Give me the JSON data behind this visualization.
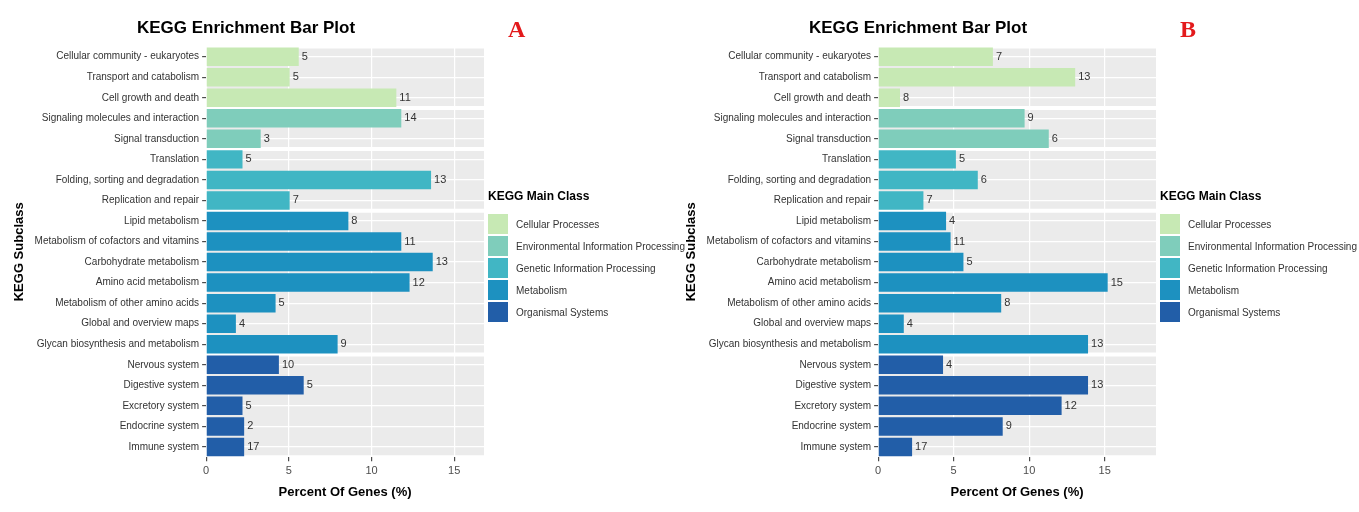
{
  "chart_data": [
    {
      "type": "bar",
      "orientation": "horizontal",
      "title": "KEGG Enrichment Bar Plot",
      "xlabel": "Percent Of Genes (%)",
      "ylabel": "KEGG Subclass",
      "legend_title": "KEGG Main Class",
      "legend": "right",
      "grid": true,
      "categories": [
        "Cellular community - eukaryotes",
        "Transport and catabolism",
        "Cell growth and death",
        "Signaling molecules and interaction",
        "Signal transduction",
        "Translation",
        "Folding, sorting and degradation",
        "Replication and repair",
        "Lipid metabolism",
        "Metabolism of cofactors and vitamins",
        "Carbohydrate metabolism",
        "Amino acid metabolism",
        "Metabolism of other amino acids",
        "Global and overview maps",
        "Glycan biosynthesis and metabolism",
        "Nervous system",
        "Digestive system",
        "Excretory system",
        "Endocrine system",
        "Immune system"
      ],
      "xlim": [
        0,
        16.8
      ],
      "xticks": [
        0,
        5,
        10,
        15
      ],
      "series": [
        {
          "name": "Cellular Processes",
          "color": "#c7e9b4",
          "values": [
            5.6,
            5.05,
            11.5,
            null,
            null,
            null,
            null,
            null,
            null,
            null,
            null,
            null,
            null,
            null,
            null,
            null,
            null,
            null,
            null,
            null
          ]
        },
        {
          "name": "Environmental Information Processing",
          "color": "#7fcdbb",
          "values": [
            null,
            null,
            null,
            11.8,
            3.3,
            null,
            null,
            null,
            null,
            null,
            null,
            null,
            null,
            null,
            null,
            null,
            null,
            null,
            null,
            null
          ]
        },
        {
          "name": "Genetic Information Processing",
          "color": "#41b6c4",
          "values": [
            null,
            null,
            null,
            null,
            null,
            2.2,
            13.6,
            5.05,
            null,
            null,
            null,
            null,
            null,
            null,
            null,
            null,
            null,
            null,
            null,
            null
          ]
        },
        {
          "name": "Metabolism",
          "color": "#1d91c0",
          "values": [
            null,
            null,
            null,
            null,
            null,
            null,
            null,
            null,
            8.6,
            11.8,
            13.7,
            12.3,
            4.2,
            1.8,
            7.95,
            null,
            null,
            null,
            null,
            null
          ]
        },
        {
          "name": "Organismal Systems",
          "color": "#225ea8",
          "values": [
            null,
            null,
            null,
            null,
            null,
            null,
            null,
            null,
            null,
            null,
            null,
            null,
            null,
            null,
            null,
            4.4,
            5.9,
            2.2,
            2.3,
            2.3
          ]
        }
      ],
      "annotations": [
        "A",
        {
          "text": "5",
          "x": 5.6,
          "y": "Cellular community - eukaryotes"
        },
        {
          "text": "5",
          "x": 5.05,
          "y": "Transport and catabolism"
        },
        {
          "text": "11",
          "x": 11.5,
          "y": "Cell growth and death"
        },
        {
          "text": "14",
          "x": 11.8,
          "y": "Signaling molecules and interaction"
        },
        {
          "text": "3",
          "x": 3.3,
          "y": "Signal transduction"
        },
        {
          "text": "5",
          "x": 2.2,
          "y": "Translation"
        },
        {
          "text": "13",
          "x": 13.6,
          "y": "Folding, sorting and degradation"
        },
        {
          "text": "7",
          "x": 5.05,
          "y": "Replication and repair"
        },
        {
          "text": "8",
          "x": 8.6,
          "y": "Lipid metabolism"
        },
        {
          "text": "11",
          "x": 11.8,
          "y": "Metabolism of cofactors and vitamins"
        },
        {
          "text": "13",
          "x": 13.7,
          "y": "Carbohydrate metabolism"
        },
        {
          "text": "12",
          "x": 12.3,
          "y": "Amino acid metabolism"
        },
        {
          "text": "5",
          "x": 4.2,
          "y": "Metabolism of other amino acids"
        },
        {
          "text": "4",
          "x": 1.8,
          "y": "Global and overview maps"
        },
        {
          "text": "9",
          "x": 7.95,
          "y": "Glycan biosynthesis and metabolism"
        },
        {
          "text": "10",
          "x": 4.4,
          "y": "Nervous system"
        },
        {
          "text": "5",
          "x": 5.9,
          "y": "Digestive system"
        },
        {
          "text": "5",
          "x": 2.2,
          "y": "Excretory system"
        },
        {
          "text": "2",
          "x": 2.3,
          "y": "Endocrine system"
        },
        {
          "text": "17",
          "x": 2.3,
          "y": "Immune system"
        }
      ]
    },
    {
      "type": "bar",
      "orientation": "horizontal",
      "title": "KEGG Enrichment Bar Plot",
      "xlabel": "Percent Of Genes (%)",
      "ylabel": "KEGG Subclass",
      "legend_title": "KEGG Main Class",
      "legend": "right",
      "grid": true,
      "categories": [
        "Cellular community - eukaryotes",
        "Transport and catabolism",
        "Cell growth and death",
        "Signaling molecules and interaction",
        "Signal transduction",
        "Translation",
        "Folding, sorting and degradation",
        "Replication and repair",
        "Lipid metabolism",
        "Metabolism of cofactors and vitamins",
        "Carbohydrate metabolism",
        "Amino acid metabolism",
        "Metabolism of other amino acids",
        "Global and overview maps",
        "Glycan biosynthesis and metabolism",
        "Nervous system",
        "Digestive system",
        "Excretory system",
        "Endocrine system",
        "Immune system"
      ],
      "xlim": [
        0,
        18.4
      ],
      "xticks": [
        0,
        5,
        10,
        15
      ],
      "series": [
        {
          "name": "Cellular Processes",
          "color": "#c7e9b4",
          "values": [
            7.6,
            13.05,
            1.45,
            null,
            null,
            null,
            null,
            null,
            null,
            null,
            null,
            null,
            null,
            null,
            null,
            null,
            null,
            null,
            null,
            null
          ]
        },
        {
          "name": "Environmental Information Processing",
          "color": "#7fcdbb",
          "values": [
            null,
            null,
            null,
            9.7,
            11.3,
            null,
            null,
            null,
            null,
            null,
            null,
            null,
            null,
            null,
            null,
            null,
            null,
            null,
            null,
            null
          ]
        },
        {
          "name": "Genetic Information Processing",
          "color": "#41b6c4",
          "values": [
            null,
            null,
            null,
            null,
            null,
            5.15,
            6.6,
            3.0,
            null,
            null,
            null,
            null,
            null,
            null,
            null,
            null,
            null,
            null,
            null,
            null
          ]
        },
        {
          "name": "Metabolism",
          "color": "#1d91c0",
          "values": [
            null,
            null,
            null,
            null,
            null,
            null,
            null,
            null,
            4.5,
            4.8,
            5.65,
            15.2,
            8.15,
            1.7,
            13.9,
            null,
            null,
            null,
            null,
            null
          ]
        },
        {
          "name": "Organismal Systems",
          "color": "#225ea8",
          "values": [
            null,
            null,
            null,
            null,
            null,
            null,
            null,
            null,
            null,
            null,
            null,
            null,
            null,
            null,
            null,
            4.3,
            13.9,
            12.15,
            8.25,
            2.25
          ]
        }
      ],
      "annotations": [
        "B",
        {
          "text": "7",
          "x": 7.6,
          "y": "Cellular community - eukaryotes"
        },
        {
          "text": "13",
          "x": 13.05,
          "y": "Transport and catabolism"
        },
        {
          "text": "8",
          "x": 1.45,
          "y": "Cell growth and death"
        },
        {
          "text": "9",
          "x": 9.7,
          "y": "Signaling molecules and interaction"
        },
        {
          "text": "6",
          "x": 11.3,
          "y": "Signal transduction"
        },
        {
          "text": "5",
          "x": 5.15,
          "y": "Translation"
        },
        {
          "text": "6",
          "x": 6.6,
          "y": "Folding, sorting and degradation"
        },
        {
          "text": "7",
          "x": 3.0,
          "y": "Replication and repair"
        },
        {
          "text": "4",
          "x": 4.5,
          "y": "Lipid metabolism"
        },
        {
          "text": "11",
          "x": 4.8,
          "y": "Metabolism of cofactors and vitamins"
        },
        {
          "text": "5",
          "x": 5.65,
          "y": "Carbohydrate metabolism"
        },
        {
          "text": "15",
          "x": 15.2,
          "y": "Amino acid metabolism"
        },
        {
          "text": "8",
          "x": 8.15,
          "y": "Metabolism of other amino acids"
        },
        {
          "text": "4",
          "x": 1.7,
          "y": "Global and overview maps"
        },
        {
          "text": "13",
          "x": 13.9,
          "y": "Glycan biosynthesis and metabolism"
        },
        {
          "text": "4",
          "x": 4.3,
          "y": "Nervous system"
        },
        {
          "text": "13",
          "x": 13.9,
          "y": "Digestive system"
        },
        {
          "text": "12",
          "x": 12.15,
          "y": "Excretory system"
        },
        {
          "text": "9",
          "x": 8.25,
          "y": "Endocrine system"
        },
        {
          "text": "17",
          "x": 2.25,
          "y": "Immune system"
        }
      ]
    }
  ]
}
